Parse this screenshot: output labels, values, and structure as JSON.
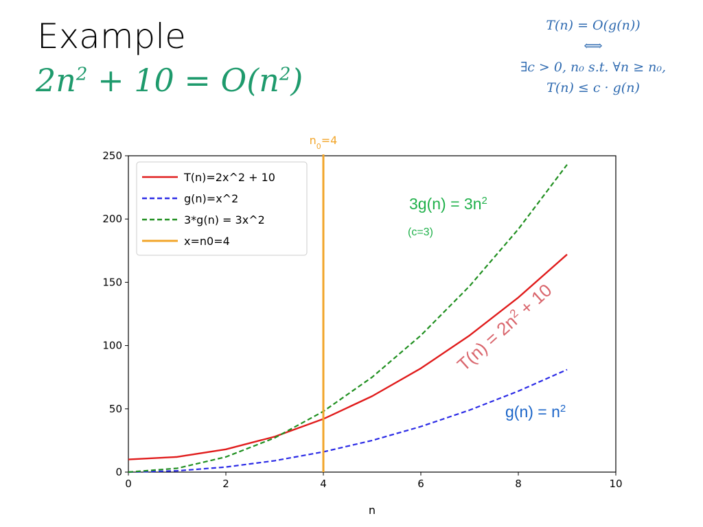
{
  "slide": {
    "title": "Example",
    "subtitle_lhs": "2n",
    "subtitle_exp1": "2",
    "subtitle_mid": " + 10 = O(n",
    "subtitle_exp2": "2",
    "subtitle_end": ")",
    "definition_lines": [
      "T(n) = O(g(n))",
      "⟺",
      "∃c > 0, n₀  s.t.  ∀n ≥ n₀,",
      "T(n) ≤ c · g(n)"
    ]
  },
  "colors": {
    "accent_green": "#1E9A6C",
    "definition_blue": "#2E6AB0",
    "t_red": "#E01B1B",
    "g_blue": "#2A2AE6",
    "three_g_green": "#1F8F1F",
    "n0_orange": "#F2A52A",
    "annot_green": "#1FB04A",
    "annot_red": "#D9656C",
    "annot_blue": "#1A64C8"
  },
  "chart_data": {
    "type": "line",
    "xlabel": "n",
    "ylabel": "",
    "xlim": [
      0,
      10
    ],
    "ylim": [
      0,
      250
    ],
    "x_ticks": [
      0,
      2,
      4,
      6,
      8,
      10
    ],
    "y_ticks": [
      0,
      50,
      100,
      150,
      200,
      250
    ],
    "grid": false,
    "legend_position": "top-left",
    "x": [
      0,
      1,
      2,
      3,
      4,
      5,
      6,
      7,
      8,
      9
    ],
    "series": [
      {
        "name": "T(n)=2x^2 + 10",
        "style": "solid",
        "color": "#E01B1B",
        "values": [
          10,
          12,
          18,
          28,
          42,
          60,
          82,
          108,
          138,
          172
        ]
      },
      {
        "name": "g(n)=x^2",
        "style": "dashed",
        "color": "#2A2AE6",
        "values": [
          0,
          1,
          4,
          9,
          16,
          25,
          36,
          49,
          64,
          81
        ]
      },
      {
        "name": "3*g(n) = 3x^2",
        "style": "dashed",
        "color": "#1F8F1F",
        "values": [
          0,
          3,
          12,
          27,
          48,
          75,
          108,
          147,
          192,
          243
        ]
      }
    ],
    "vline": {
      "name": "x=n0=4",
      "x": 4,
      "color": "#F2A52A"
    },
    "vline_label_base": "n",
    "vline_label_sub": "0",
    "vline_label_rest": "=4",
    "annotations": {
      "three_g": {
        "base": "3g(n) = 3n",
        "sup": "2"
      },
      "c_note": "(c=3)",
      "t_curve": {
        "base": "T(n) = 2n",
        "sup": "2",
        "rest": " + 10"
      },
      "g_curve": {
        "base": "g(n) = n",
        "sup": "2"
      }
    }
  }
}
